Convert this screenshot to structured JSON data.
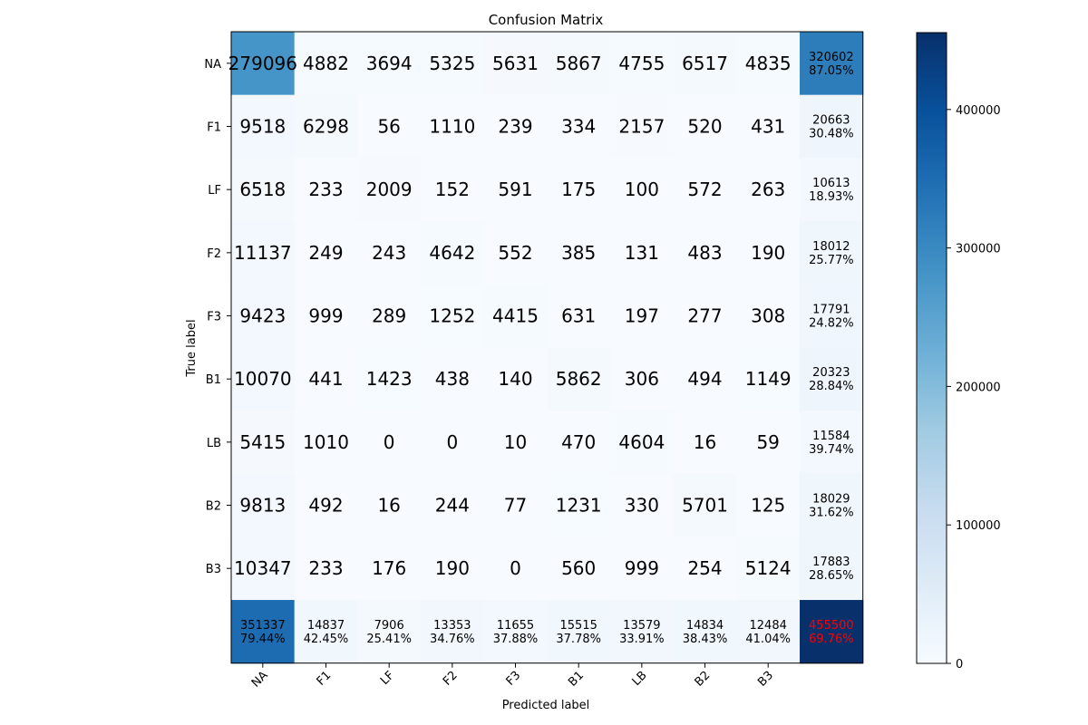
{
  "chart_data": {
    "type": "heatmap",
    "title": "Confusion Matrix",
    "xlabel": "Predicted label",
    "ylabel": "True label",
    "row_labels": [
      "NA",
      "F1",
      "LF",
      "F2",
      "F3",
      "B1",
      "LB",
      "B2",
      "B3"
    ],
    "col_labels": [
      "NA",
      "F1",
      "LF",
      "F2",
      "F3",
      "B1",
      "LB",
      "B2",
      "B3"
    ],
    "matrix": [
      [
        279096,
        4882,
        3694,
        5325,
        5631,
        5867,
        4755,
        6517,
        4835
      ],
      [
        9518,
        6298,
        56,
        1110,
        239,
        334,
        2157,
        520,
        431
      ],
      [
        6518,
        233,
        2009,
        152,
        591,
        175,
        100,
        572,
        263
      ],
      [
        11137,
        249,
        243,
        4642,
        552,
        385,
        131,
        483,
        190
      ],
      [
        9423,
        999,
        289,
        1252,
        4415,
        631,
        197,
        277,
        308
      ],
      [
        10070,
        441,
        1423,
        438,
        140,
        5862,
        306,
        494,
        1149
      ],
      [
        5415,
        1010,
        0,
        0,
        10,
        470,
        4604,
        16,
        59
      ],
      [
        9813,
        492,
        16,
        244,
        77,
        1231,
        330,
        5701,
        125
      ],
      [
        10347,
        233,
        176,
        190,
        0,
        560,
        999,
        254,
        5124
      ]
    ],
    "row_totals": [
      {
        "total": "320602",
        "pct": "87.05%"
      },
      {
        "total": "20663",
        "pct": "30.48%"
      },
      {
        "total": "10613",
        "pct": "18.93%"
      },
      {
        "total": "18012",
        "pct": "25.77%"
      },
      {
        "total": "17791",
        "pct": "24.82%"
      },
      {
        "total": "20323",
        "pct": "28.84%"
      },
      {
        "total": "11584",
        "pct": "39.74%"
      },
      {
        "total": "18029",
        "pct": "31.62%"
      },
      {
        "total": "17883",
        "pct": "28.65%"
      }
    ],
    "col_totals": [
      {
        "total": "351337",
        "pct": "79.44%"
      },
      {
        "total": "14837",
        "pct": "42.45%"
      },
      {
        "total": "7906",
        "pct": "25.41%"
      },
      {
        "total": "13353",
        "pct": "34.76%"
      },
      {
        "total": "11655",
        "pct": "37.88%"
      },
      {
        "total": "15515",
        "pct": "37.78%"
      },
      {
        "total": "13579",
        "pct": "33.91%"
      },
      {
        "total": "14834",
        "pct": "38.43%"
      },
      {
        "total": "12484",
        "pct": "41.04%"
      }
    ],
    "grand_total": {
      "total": "455500",
      "pct": "69.76%",
      "color": "#ff0000"
    },
    "colorbar": {
      "colormap": "Blues",
      "vmin": 0,
      "vmax": 455500,
      "ticks": [
        0,
        100000,
        200000,
        300000,
        400000
      ]
    },
    "grid": false
  }
}
